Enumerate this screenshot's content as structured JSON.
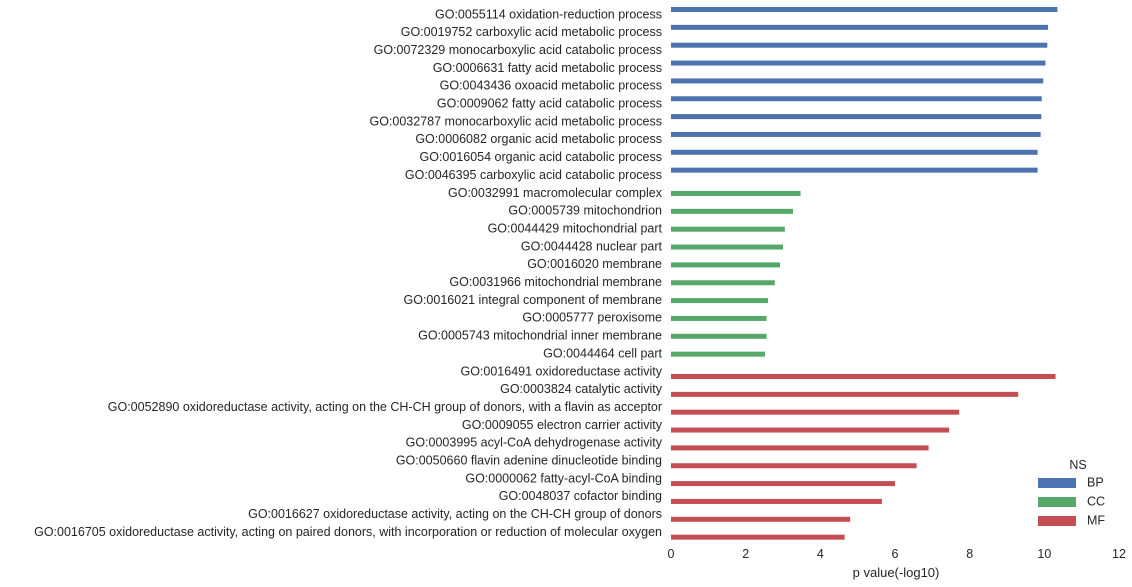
{
  "chart_data": {
    "type": "bar",
    "orientation": "horizontal",
    "xlabel": "p value(-log10)",
    "xlim": [
      0,
      12
    ],
    "xticks": [
      "0",
      "2",
      "4",
      "6",
      "8",
      "10",
      "12"
    ],
    "grid": false,
    "legend": {
      "title": "NS",
      "position": "bottom-right",
      "entries": [
        "BP",
        "CC",
        "MF"
      ]
    },
    "colors": {
      "BP": "#4c72b0",
      "CC": "#55a868",
      "MF": "#c44e52"
    },
    "series": [
      {
        "name": "BP",
        "categories": [
          "GO:0055114 oxidation-reduction process",
          "GO:0019752 carboxylic acid metabolic process",
          "GO:0072329 monocarboxylic acid catabolic process",
          "GO:0006631 fatty acid metabolic process",
          "GO:0043436 oxoacid metabolic process",
          "GO:0009062 fatty acid catabolic process",
          "GO:0032787 monocarboxylic acid metabolic process",
          "GO:0006082 organic acid metabolic process",
          "GO:0016054 organic acid catabolic process",
          "GO:0046395 carboxylic acid catabolic process"
        ],
        "values": [
          10.35,
          10.1,
          10.08,
          10.03,
          9.97,
          9.93,
          9.92,
          9.9,
          9.82,
          9.82
        ]
      },
      {
        "name": "CC",
        "categories": [
          "GO:0032991 macromolecular complex",
          "GO:0005739 mitochondrion",
          "GO:0044429 mitochondrial part",
          "GO:0044428 nuclear part",
          "GO:0016020 membrane",
          "GO:0031966 mitochondrial membrane",
          "GO:0016021 integral component of membrane",
          "GO:0005777 peroxisome",
          "GO:0005743 mitochondrial inner membrane",
          "GO:0044464 cell part"
        ],
        "values": [
          3.47,
          3.27,
          3.05,
          3.0,
          2.92,
          2.78,
          2.6,
          2.56,
          2.56,
          2.52
        ]
      },
      {
        "name": "MF",
        "categories": [
          "GO:0016491 oxidoreductase activity",
          "GO:0003824 catalytic activity",
          "GO:0052890 oxidoreductase activity, acting on the CH-CH group of donors, with a flavin as acceptor",
          "GO:0009055 electron carrier activity",
          "GO:0003995 acyl-CoA dehydrogenase activity",
          "GO:0050660 flavin adenine dinucleotide binding",
          "GO:0000062 fatty-acyl-CoA binding",
          "GO:0048037 cofactor binding",
          "GO:0016627 oxidoreductase activity, acting on the CH-CH group of donors",
          "GO:0016705 oxidoreductase activity, acting on paired donors, with incorporation or reduction of molecular oxygen"
        ],
        "values": [
          10.3,
          9.3,
          7.72,
          7.45,
          6.9,
          6.58,
          6.0,
          5.65,
          4.8,
          4.65
        ]
      }
    ]
  }
}
